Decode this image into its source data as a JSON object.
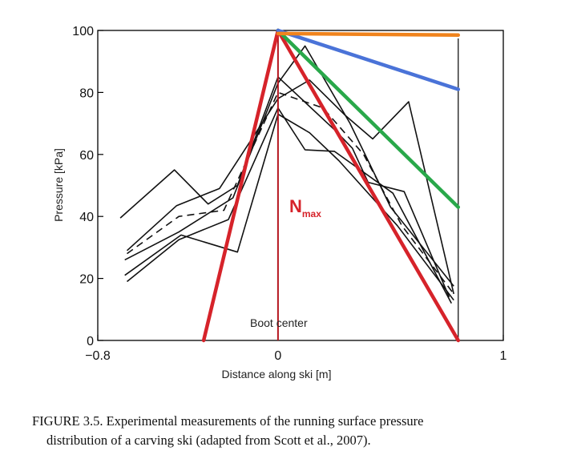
{
  "chart_data": {
    "type": "line",
    "xlabel": "Distance along ski [m]",
    "ylabel": "Pressure [kPa]",
    "xlim": [
      -0.8,
      1
    ],
    "ylim": [
      0,
      100
    ],
    "x_ticks": [
      -0.8,
      0,
      1
    ],
    "x_tick_labels": [
      "−0.8",
      "0",
      "1"
    ],
    "y_ticks": [
      0,
      20,
      40,
      60,
      80,
      100
    ],
    "y_tick_labels": [
      "0",
      "20",
      "40",
      "60",
      "80",
      "100"
    ],
    "grid": false,
    "annotations": {
      "boot_center": "Boot center",
      "n_label_main": "N",
      "n_label_sub": "max"
    },
    "measured_series": [
      {
        "style": "solid",
        "points": [
          [
            -0.7,
            39.5
          ],
          [
            -0.46,
            55
          ],
          [
            -0.31,
            44
          ],
          [
            -0.18,
            50
          ],
          [
            0,
            85
          ],
          [
            0.25,
            68
          ],
          [
            0.33,
            62
          ],
          [
            0.4,
            51
          ],
          [
            0.56,
            48
          ],
          [
            0.76,
            14
          ]
        ]
      },
      {
        "style": "solid",
        "points": [
          [
            -0.67,
            29
          ],
          [
            -0.45,
            43.5
          ],
          [
            -0.26,
            49
          ],
          [
            0,
            78
          ],
          [
            0.14,
            84
          ],
          [
            0.3,
            72.5
          ],
          [
            0.42,
            65
          ],
          [
            0.58,
            77
          ],
          [
            0.78,
            15
          ]
        ]
      },
      {
        "style": "solid",
        "points": [
          [
            -0.68,
            21
          ],
          [
            -0.43,
            34
          ],
          [
            -0.18,
            28.5
          ],
          [
            0,
            73
          ],
          [
            0.14,
            67
          ],
          [
            0.27,
            58
          ],
          [
            0.53,
            37
          ],
          [
            0.78,
            13
          ]
        ]
      },
      {
        "style": "solid",
        "points": [
          [
            -0.67,
            19
          ],
          [
            -0.44,
            32.5
          ],
          [
            -0.22,
            39
          ],
          [
            0,
            75
          ],
          [
            0.12,
            61.5
          ],
          [
            0.25,
            61
          ],
          [
            0.51,
            47.5
          ],
          [
            0.77,
            12
          ]
        ]
      },
      {
        "style": "solid",
        "points": [
          [
            -0.68,
            26
          ],
          [
            -0.44,
            35
          ],
          [
            -0.2,
            46
          ],
          [
            0,
            83
          ],
          [
            0.12,
            95
          ],
          [
            0.32,
            70
          ],
          [
            0.5,
            43
          ],
          [
            0.78,
            17.5
          ]
        ]
      },
      {
        "style": "dashed",
        "points": [
          [
            -0.67,
            28
          ],
          [
            -0.44,
            40
          ],
          [
            -0.24,
            42
          ],
          [
            0,
            80
          ],
          [
            0.2,
            75
          ],
          [
            0.38,
            60
          ],
          [
            0.55,
            37
          ],
          [
            0.78,
            15
          ]
        ]
      }
    ],
    "model_lines": [
      {
        "color": "#d6232a",
        "points": [
          [
            -0.33,
            0
          ],
          [
            0,
            100
          ]
        ]
      },
      {
        "color": "#d6232a",
        "points": [
          [
            0,
            100
          ],
          [
            0.8,
            0
          ]
        ]
      },
      {
        "color": "#29a84a",
        "points": [
          [
            0,
            100
          ],
          [
            0.8,
            43
          ]
        ]
      },
      {
        "color": "#4a73d8",
        "points": [
          [
            0,
            100
          ],
          [
            0.8,
            81
          ]
        ]
      },
      {
        "color": "#f0831c",
        "points": [
          [
            0,
            99
          ],
          [
            0.8,
            98.5
          ]
        ]
      }
    ],
    "boot_center_line": {
      "color": "#b5161e",
      "x": 0
    },
    "right_edge_line_x": 0.8,
    "nmax_label_color": "#d6232a"
  },
  "caption": {
    "line1": "FIGURE 3.5.  Experimental measurements of the running surface pressure",
    "line2": "distribution of a carving ski (adapted from Scott et al., 2007)."
  }
}
